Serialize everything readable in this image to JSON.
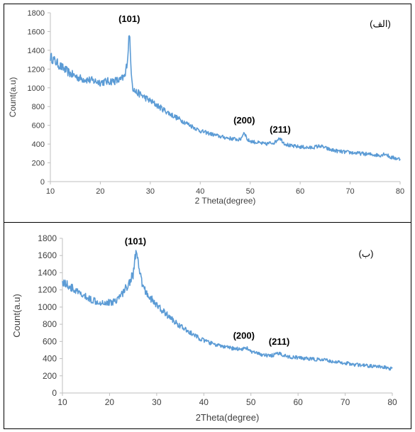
{
  "chart_data": [
    {
      "type": "line",
      "panel_label": "(الف)",
      "xlabel": "2 Theta(degree)",
      "ylabel": "Count(a.u)",
      "xlim": [
        10,
        80
      ],
      "ylim": [
        0,
        1800
      ],
      "x_ticks": [
        "10",
        "20",
        "30",
        "40",
        "50",
        "60",
        "70",
        "80"
      ],
      "y_ticks": [
        "0",
        "200",
        "400",
        "600",
        "800",
        "1000",
        "1200",
        "1400",
        "1600",
        "1800"
      ],
      "grid": false,
      "color": "#5B9BD5",
      "annotations": [
        {
          "text": "(101)",
          "x": 25.8,
          "y": 1700
        },
        {
          "text": "(200)",
          "x": 48.8,
          "y": 620
        },
        {
          "text": "(211)",
          "x": 56.0,
          "y": 520
        }
      ],
      "series": [
        {
          "x": [
            10,
            12,
            14,
            16,
            18,
            20,
            22,
            24,
            25,
            25.5,
            25.8,
            26.1,
            26.5,
            27,
            28,
            30,
            32,
            34,
            36,
            38,
            40,
            42,
            44,
            46,
            48,
            48.8,
            49.5,
            51,
            53,
            55,
            55.8,
            56.8,
            58,
            60,
            62,
            64,
            66,
            68,
            70,
            72,
            74,
            76,
            77,
            78,
            80
          ],
          "y": [
            1330,
            1230,
            1150,
            1100,
            1080,
            1060,
            1070,
            1080,
            1130,
            1350,
            1610,
            1250,
            1000,
            960,
            930,
            860,
            790,
            720,
            660,
            600,
            540,
            510,
            480,
            460,
            445,
            530,
            440,
            420,
            400,
            420,
            470,
            410,
            380,
            370,
            360,
            380,
            340,
            320,
            310,
            300,
            290,
            280,
            300,
            260,
            240
          ]
        }
      ]
    },
    {
      "type": "line",
      "panel_label": "(ب)",
      "xlabel": "2Theta(degree)",
      "ylabel": "Count(a.u)",
      "xlim": [
        10,
        80
      ],
      "ylim": [
        0,
        1800
      ],
      "x_ticks": [
        "10",
        "20",
        "30",
        "40",
        "50",
        "60",
        "70",
        "80"
      ],
      "y_ticks": [
        "0",
        "200",
        "400",
        "600",
        "800",
        "1000",
        "1200",
        "1400",
        "1600",
        "1800"
      ],
      "grid": false,
      "color": "#5B9BD5",
      "annotations": [
        {
          "text": "(101)",
          "x": 25.5,
          "y": 1730
        },
        {
          "text": "(200)",
          "x": 48.5,
          "y": 630
        },
        {
          "text": "(211)",
          "x": 56.0,
          "y": 560
        }
      ],
      "series": [
        {
          "x": [
            10,
            12,
            14,
            16,
            18,
            20,
            21,
            22,
            23,
            24,
            25,
            25.6,
            26.2,
            27,
            28,
            30,
            32,
            34,
            36,
            38,
            40,
            42,
            44,
            46,
            48,
            49,
            50,
            52,
            54,
            56,
            58,
            60,
            62,
            64,
            66,
            68,
            70,
            72,
            74,
            76,
            78,
            80
          ],
          "y": [
            1300,
            1220,
            1140,
            1090,
            1060,
            1050,
            1070,
            1110,
            1180,
            1270,
            1380,
            1660,
            1450,
            1250,
            1150,
            1020,
            920,
            820,
            740,
            670,
            610,
            570,
            540,
            520,
            510,
            530,
            480,
            450,
            430,
            460,
            420,
            410,
            400,
            390,
            380,
            360,
            350,
            330,
            320,
            310,
            300,
            280
          ]
        }
      ]
    }
  ]
}
